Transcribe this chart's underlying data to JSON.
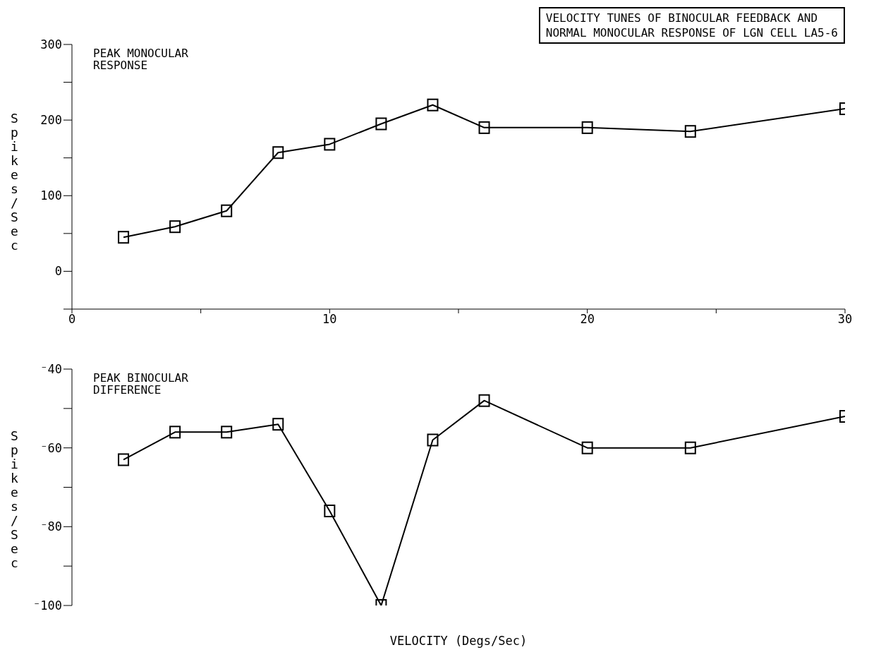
{
  "chart_data": [
    {
      "type": "line",
      "title": "VELOCITY TUNES OF BINOCULAR FEEDBACK AND\nNORMAL MONOCULAR RESPONSE OF LGN CELL LA5-6",
      "ylabel": "Spikes/Sec",
      "annotations": [
        "PEAK MONOCULAR\nRESPONSE"
      ],
      "x": [
        2,
        4,
        6,
        8,
        10,
        12,
        14,
        16,
        20,
        24,
        30
      ],
      "series": [
        {
          "color": "#000000",
          "values": [
            45,
            59,
            80,
            157,
            168,
            195,
            220,
            190,
            190,
            185,
            215
          ]
        }
      ],
      "xlim": [
        0,
        30
      ],
      "xticks": [
        0,
        {
          "value": 5,
          "label": null
        },
        10,
        {
          "value": 15,
          "label": null
        },
        20,
        {
          "value": 25,
          "label": null
        },
        30
      ],
      "ylim": [
        -50,
        300
      ],
      "yticks": [
        {
          "value": -50,
          "label": null
        },
        0,
        {
          "value": 50,
          "label": null
        },
        100,
        {
          "value": 150,
          "label": null
        },
        200,
        {
          "value": 250,
          "label": null
        },
        300
      ],
      "marker": "square"
    },
    {
      "type": "line",
      "xlabel": "VELOCITY (Degs/Sec)",
      "ylabel": "Spikes/Sec",
      "annotations": [
        "PEAK BINOCULAR\nDIFFERENCE"
      ],
      "x": [
        2,
        4,
        6,
        8,
        10,
        12,
        14,
        16,
        20,
        24,
        30
      ],
      "series": [
        {
          "color": "#000000",
          "values": [
            -63,
            -56,
            -56,
            -54,
            -76,
            -100,
            -58,
            -48,
            -60,
            -60,
            -52
          ]
        }
      ],
      "xlim": [
        0,
        30
      ],
      "ylim": [
        -100,
        -40
      ],
      "yticks": [
        {
          "value": -100,
          "label": "⁻100"
        },
        {
          "value": -90,
          "label": null
        },
        {
          "value": -80,
          "label": "⁻80"
        },
        {
          "value": -70,
          "label": null
        },
        {
          "value": -60,
          "label": "⁻60"
        },
        {
          "value": -50,
          "label": null
        },
        {
          "value": -40,
          "label": "⁻40"
        }
      ],
      "marker": "square",
      "tick_labels": "y"
    }
  ]
}
